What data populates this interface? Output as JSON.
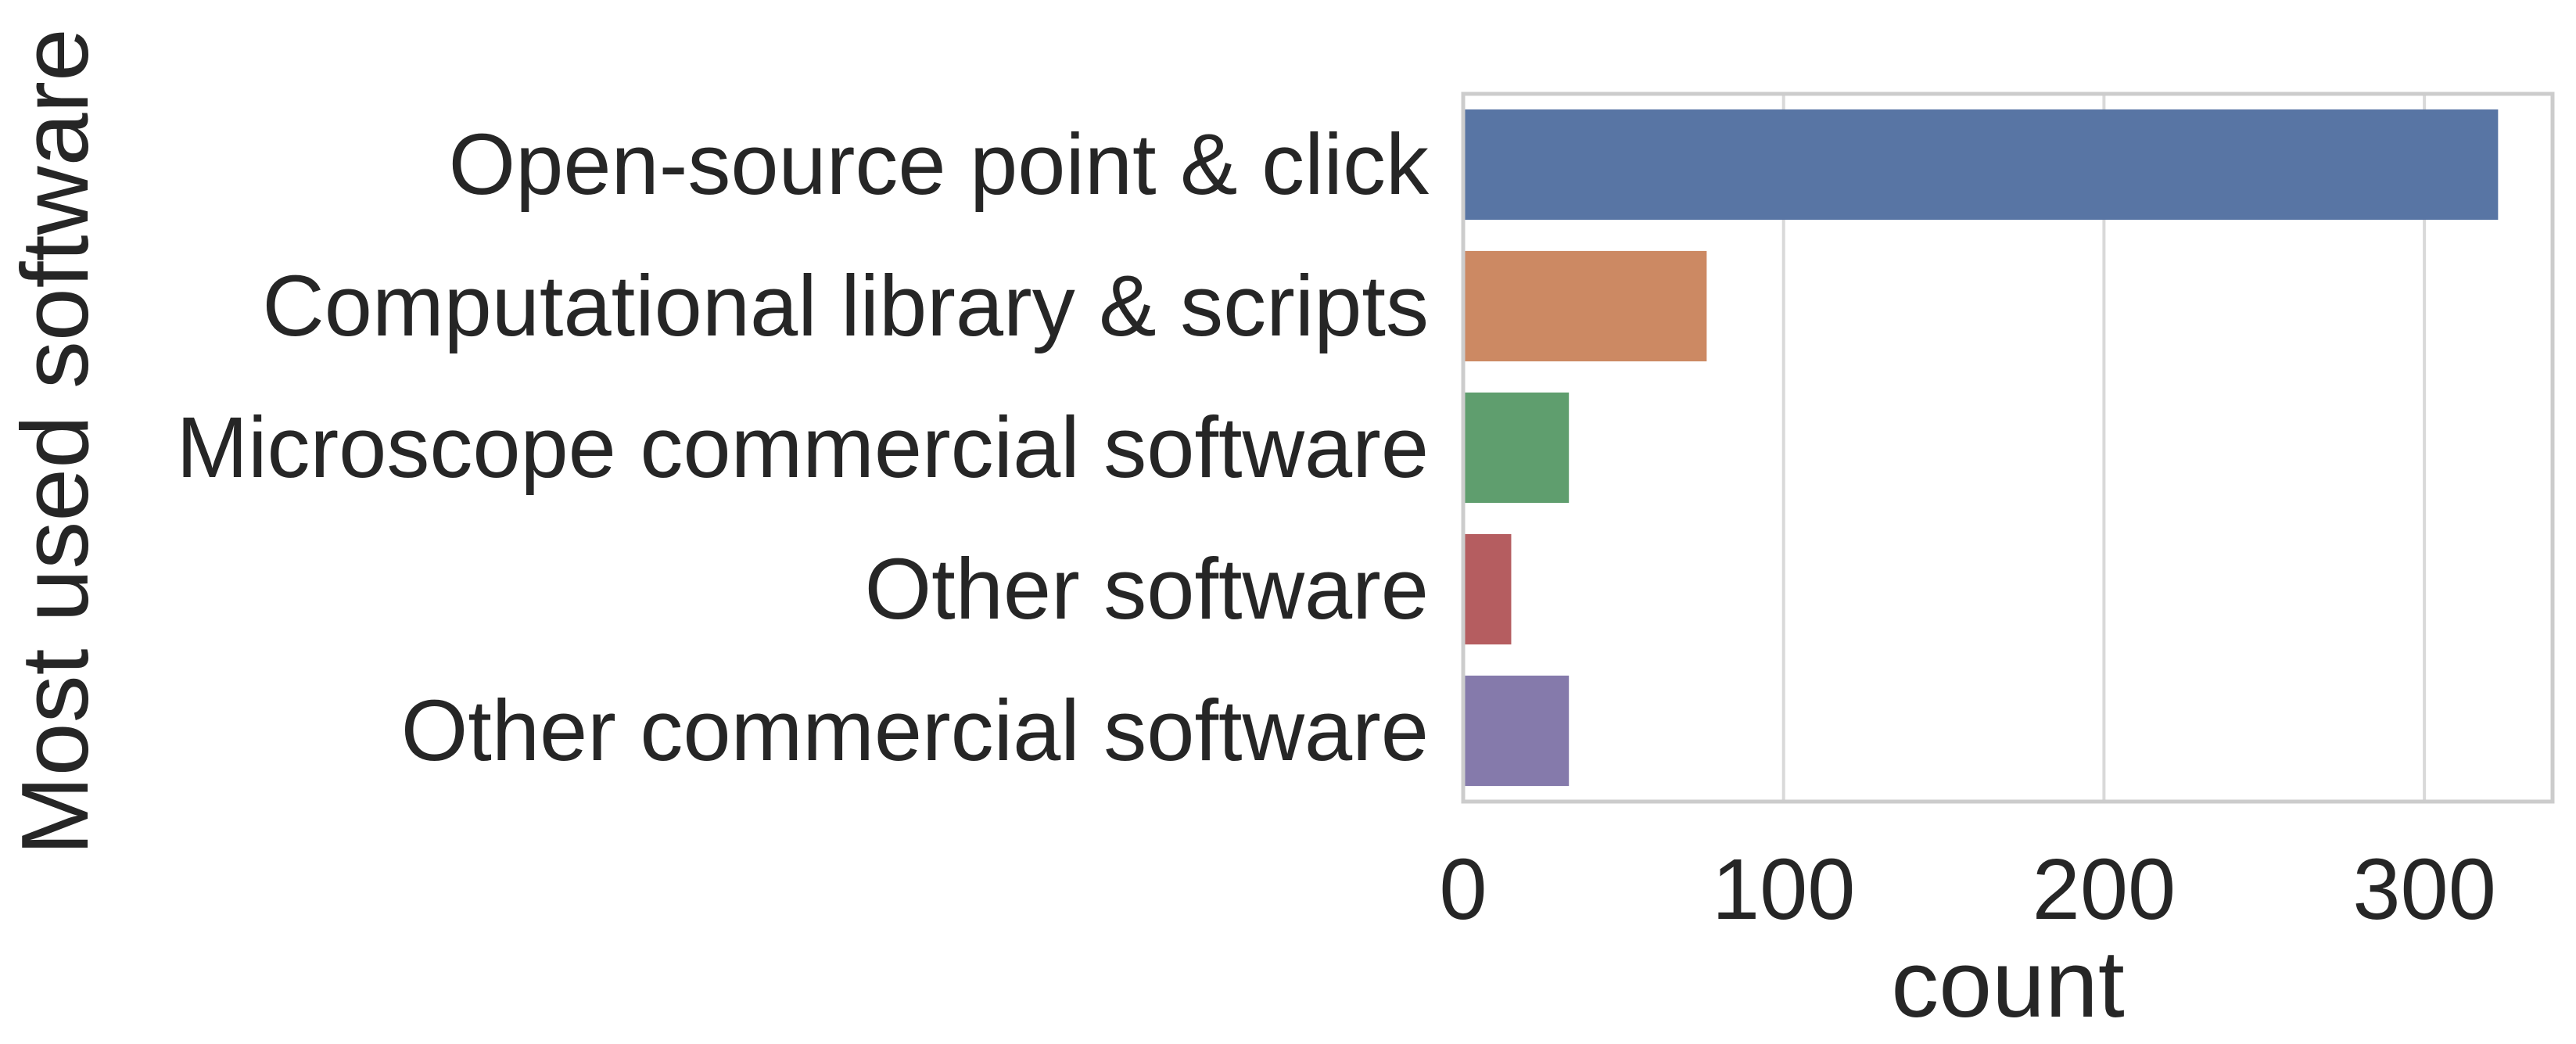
{
  "chart_data": {
    "type": "bar",
    "orientation": "horizontal",
    "categories": [
      "Open-source point & click",
      "Computational library & scripts",
      "Microscope commercial software",
      "Other software",
      "Other commercial software"
    ],
    "values": [
      323,
      76,
      33,
      15,
      33
    ],
    "colors": [
      "#5875a4",
      "#cc8963",
      "#5f9e6e",
      "#b55d60",
      "#857aab"
    ],
    "xlabel": "count",
    "ylabel": "Most used software",
    "xlim": [
      0,
      340
    ],
    "xticks": [
      0,
      100,
      200,
      300
    ],
    "grid": "vertical",
    "legend": "none",
    "style": {
      "text_color": "#262626",
      "grid_color": "#d9d9d9",
      "frame_color": "#cccccc",
      "background": "#ffffff"
    }
  }
}
